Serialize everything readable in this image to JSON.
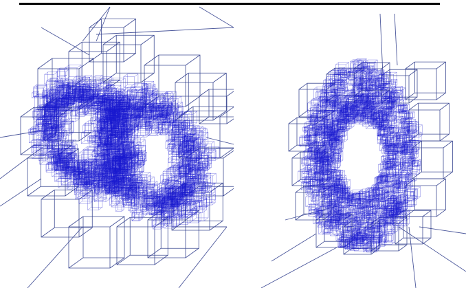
{
  "figure": {
    "colors": {
      "wire": "#1a1ad0",
      "wire_dense": "#2020e0",
      "frame": "#2b3a8a",
      "rule": "#000000",
      "background": "#ffffff"
    },
    "panels": [
      {
        "id": "left",
        "subject": "octree-wireframe-double-torus",
        "shape": "two interlocked tori"
      },
      {
        "id": "right",
        "subject": "octree-wireframe-torus",
        "shape": "single torus"
      }
    ]
  }
}
